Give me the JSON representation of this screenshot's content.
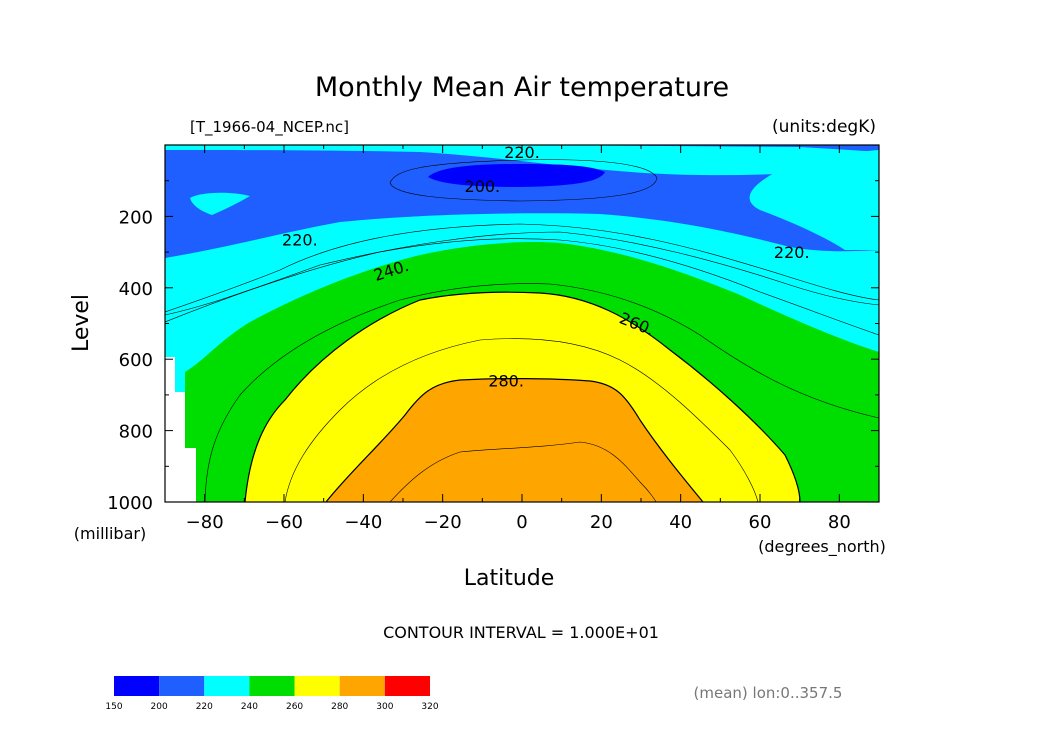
{
  "chart_data": {
    "type": "contour",
    "title": "Monthly Mean Air temperature",
    "file_label": "[T_1966-04_NCEP.nc]",
    "units_label": "(units:degK)",
    "xlabel": "Latitude",
    "x_units": "(degrees_north)",
    "ylabel": "Level",
    "y_units": "(millibar)",
    "xlim": [
      -90,
      90
    ],
    "ylim": [
      1000,
      0
    ],
    "x_ticks": [
      "-80",
      "-60",
      "-40",
      "-20",
      "0",
      "20",
      "40",
      "60",
      "80"
    ],
    "y_ticks": [
      "200",
      "400",
      "600",
      "800",
      "1000"
    ],
    "contour_interval_text": "CONTOUR INTERVAL = 1.000E+01",
    "mean_note": "(mean) lon:0..357.5",
    "contour_labels": [
      {
        "text": "220.",
        "lat": 0,
        "level": 20
      },
      {
        "text": "200.",
        "lat": -10,
        "level": 115
      },
      {
        "text": "220.",
        "lat": -56,
        "level": 265
      },
      {
        "text": "220.",
        "lat": 68,
        "level": 300
      },
      {
        "text": "240.",
        "lat": -33,
        "level": 350
      },
      {
        "text": "260.",
        "lat": 29,
        "level": 500
      },
      {
        "text": "280.",
        "lat": -4,
        "level": 660
      }
    ],
    "colorbar": {
      "ticks": [
        "150",
        "200",
        "220",
        "240",
        "260",
        "280",
        "300",
        "320"
      ],
      "colors": [
        "#0000ff",
        "#1f5fff",
        "#00ffff",
        "#00dd00",
        "#ffff00",
        "#ffa500",
        "#ff0000"
      ]
    },
    "fill_colors": {
      "lt200": "#0000ff",
      "200_220": "#1f5fff",
      "220_240": "#00ffff",
      "240_260": "#00dd00",
      "260_280": "#ffff00",
      "gt280": "#ffa500",
      "missing": "#ffffff"
    }
  }
}
